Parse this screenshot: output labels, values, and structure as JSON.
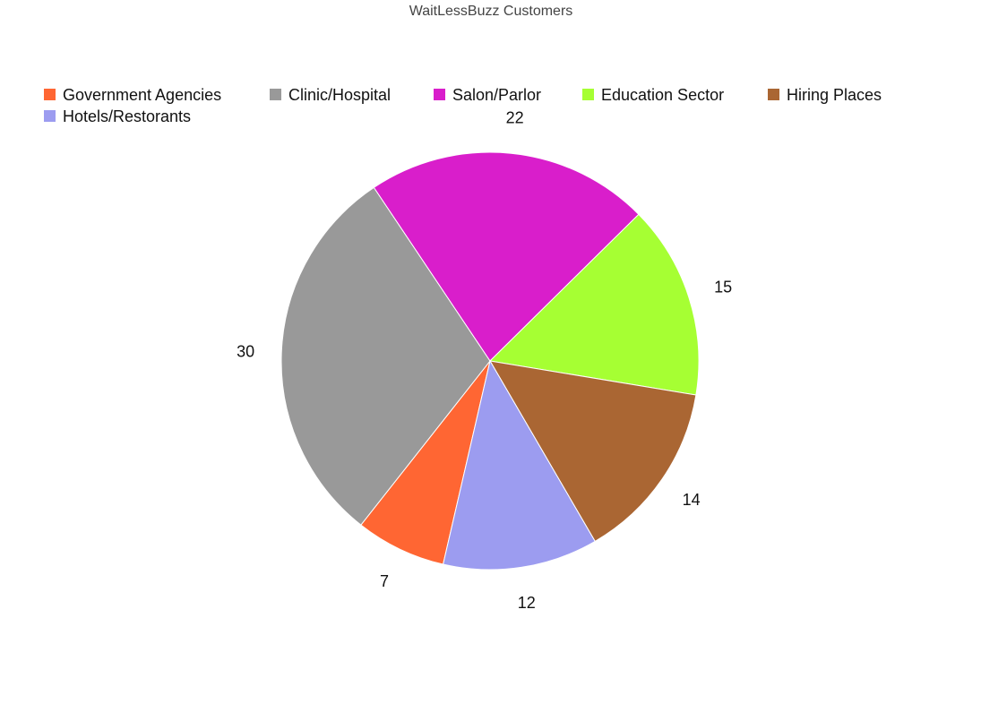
{
  "chart_data": {
    "type": "pie",
    "title": "WaitLessBuzz Customers",
    "legend_placement": "top",
    "categories": [
      "Government Agencies",
      "Clinic/Hospital",
      "Salon/Parlor",
      "Education Sector",
      "Hiring Places",
      "Hotels/Restorants"
    ],
    "values": [
      7,
      30,
      22,
      15,
      14,
      12
    ],
    "colors": [
      "#ff6633",
      "#999999",
      "#d91ecb",
      "#a6ff33",
      "#aa6633",
      "#9c9cf0"
    ],
    "data_labels": [
      "7",
      "30",
      "22",
      "15",
      "14",
      "12"
    ]
  }
}
